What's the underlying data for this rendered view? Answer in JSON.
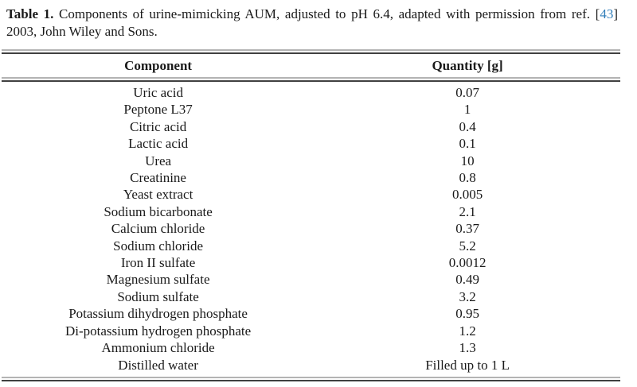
{
  "caption": {
    "label": "Table 1.",
    "before_ref": " Components of urine-mimicking AUM, adjusted to pH 6.4, adapted with permission from ref. [",
    "ref_number": "43",
    "after_ref": "] 2003, John Wiley and Sons."
  },
  "table": {
    "headers": [
      "Component",
      "Quantity [g]"
    ],
    "rows": [
      [
        "Uric acid",
        "0.07"
      ],
      [
        "Peptone L37",
        "1"
      ],
      [
        "Citric acid",
        "0.4"
      ],
      [
        "Lactic acid",
        "0.1"
      ],
      [
        "Urea",
        "10"
      ],
      [
        "Creatinine",
        "0.8"
      ],
      [
        "Yeast extract",
        "0.005"
      ],
      [
        "Sodium bicarbonate",
        "2.1"
      ],
      [
        "Calcium chloride",
        "0.37"
      ],
      [
        "Sodium chloride",
        "5.2"
      ],
      [
        "Iron II sulfate",
        "0.0012"
      ],
      [
        "Magnesium sulfate",
        "0.49"
      ],
      [
        "Sodium sulfate",
        "3.2"
      ],
      [
        "Potassium dihydrogen phosphate",
        "0.95"
      ],
      [
        "Di-potassium hydrogen phosphate",
        "1.2"
      ],
      [
        "Ammonium chloride",
        "1.3"
      ],
      [
        "Distilled water",
        "Filled up to 1 L"
      ]
    ]
  },
  "colors": {
    "text": "#1a1a1a",
    "link_blue": "#2e7cb8",
    "rule_dark": "#404040",
    "rule_light": "#b3b3b3"
  }
}
